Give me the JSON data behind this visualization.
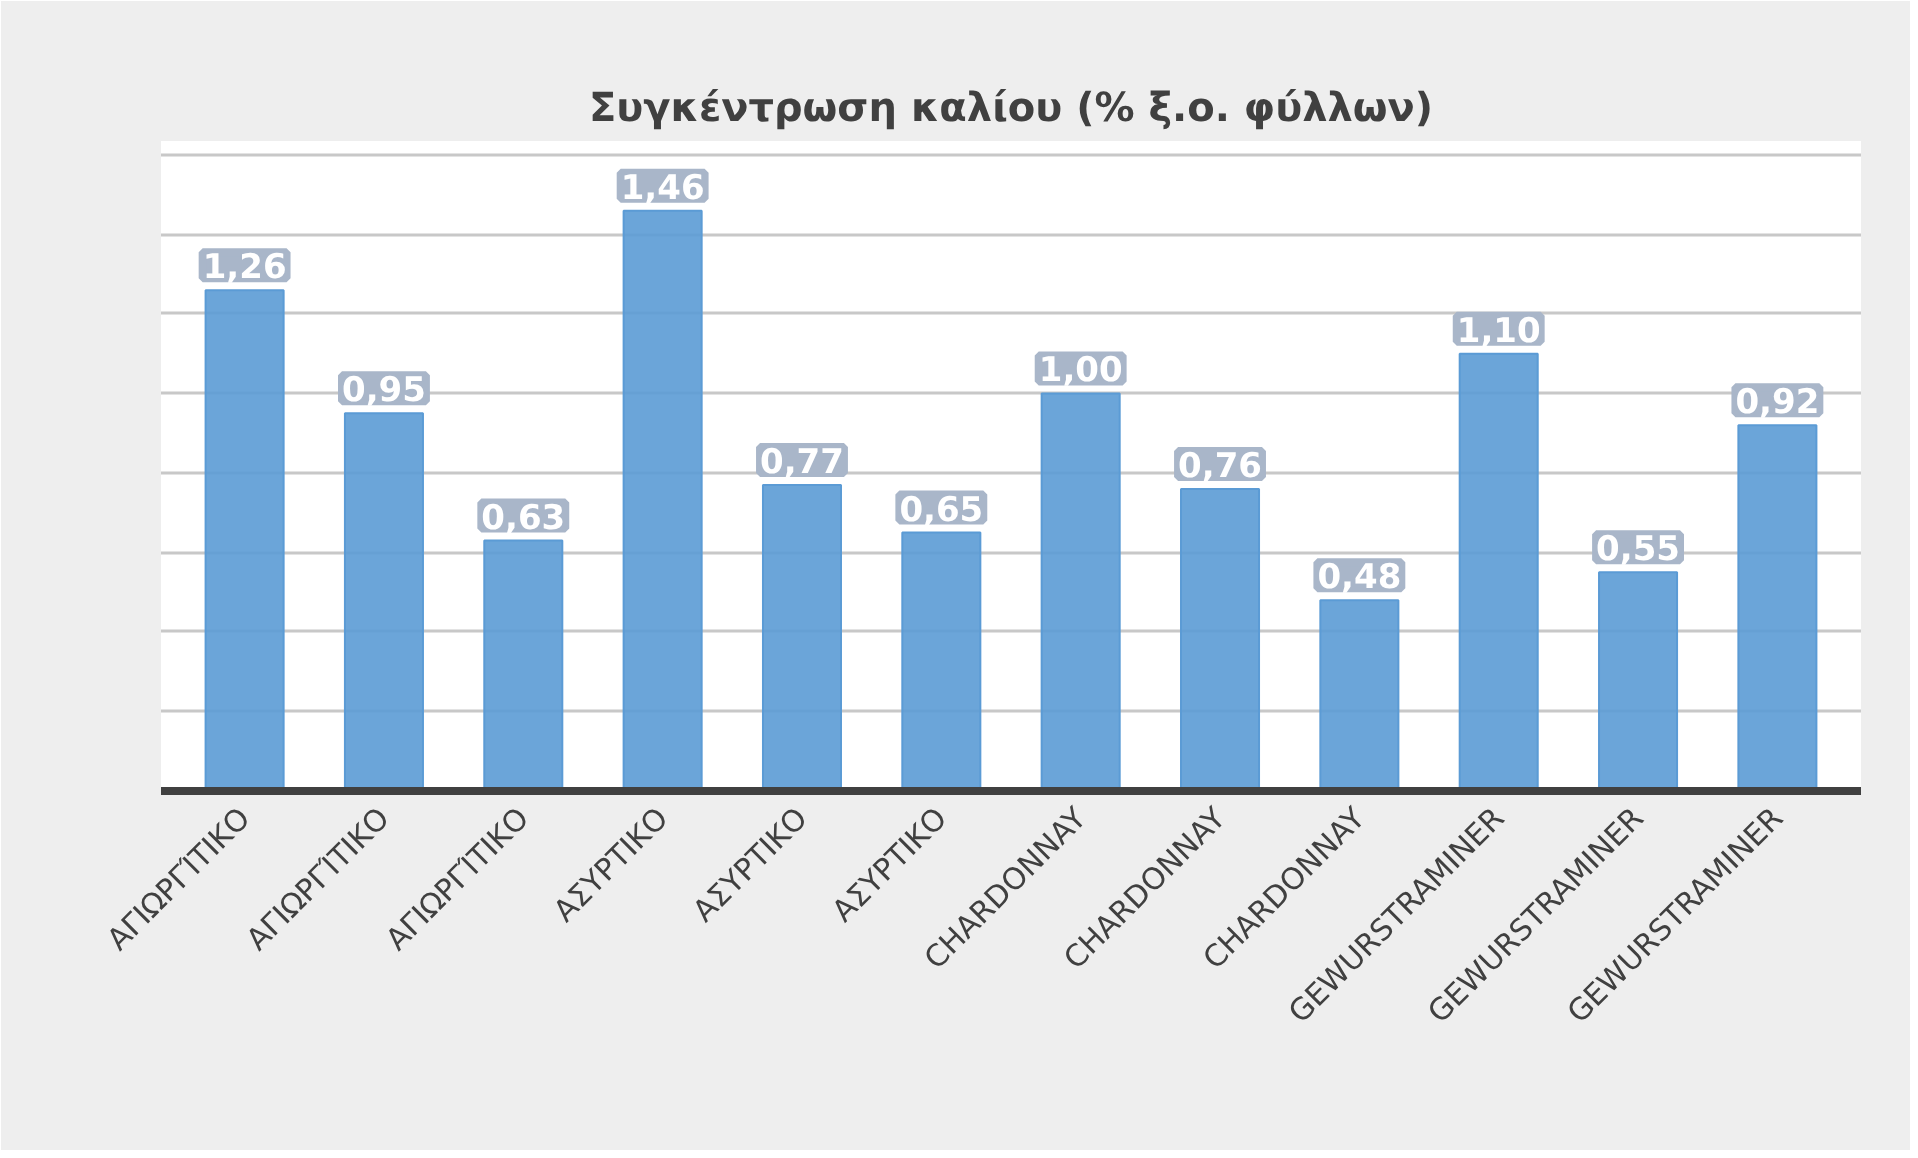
{
  "chart_data": {
    "type": "bar",
    "title": "Συγκέντρωση καλίου (% ξ.ο. φύλλων)",
    "categories": [
      "ΑΓΙΩΡΓΊΤΙΚΟ",
      "ΑΓΙΩΡΓΊΤΙΚΟ",
      "ΑΓΙΩΡΓΊΤΙΚΟ",
      "ΑΣΥΡΤΙΚΟ",
      "ΑΣΥΡΤΙΚΟ",
      "ΑΣΥΡΤΙΚΟ",
      "CHARDONNAY",
      "CHARDONNAY",
      "CHARDONNAY",
      "GEWURSTRAMINER",
      "GEWURSTRAMINER",
      "GEWURSTRAMINER"
    ],
    "values": [
      1.26,
      0.95,
      0.63,
      1.46,
      0.77,
      0.65,
      1.0,
      0.76,
      0.48,
      1.1,
      0.55,
      0.92
    ],
    "value_labels": [
      "1,26",
      "0,95",
      "0,63",
      "1,46",
      "0,77",
      "0,65",
      "1,00",
      "0,76",
      "0,48",
      "1,10",
      "0,55",
      "0,92"
    ],
    "color": "#5b9bd5",
    "grid": "y",
    "tick_labels": "x"
  }
}
